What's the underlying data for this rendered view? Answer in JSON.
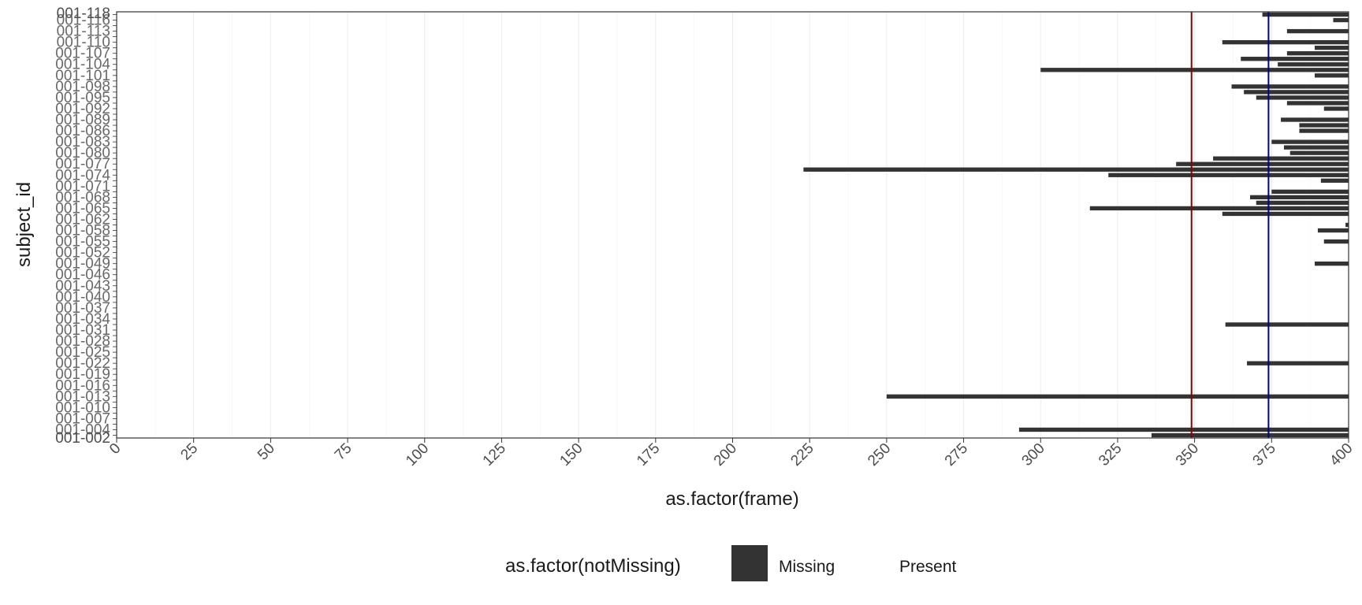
{
  "chart_data": {
    "type": "bar",
    "orientation": "horizontal",
    "xlabel": "as.factor(frame)",
    "ylabel": "subject_id",
    "xlim": [
      0,
      400
    ],
    "x_ticks": [
      "0",
      "25",
      "50",
      "75",
      "100",
      "125",
      "150",
      "175",
      "200",
      "225",
      "250",
      "275",
      "300",
      "325",
      "350",
      "375",
      "400"
    ],
    "y_tick_labels_top": "001-118",
    "y_tick_labels_bottom": "001-002",
    "grid": true,
    "legend": {
      "title": "as.factor(notMissing)",
      "position": "bottom",
      "entries": [
        {
          "label": "Missing",
          "color": "#333333"
        },
        {
          "label": "Present",
          "color": "#ffffff"
        }
      ]
    },
    "reference_lines": [
      {
        "x": 349,
        "color": "#8b0000"
      },
      {
        "x": 374,
        "color": "#00008b"
      }
    ],
    "missing_from_frame": [
      372,
      395,
      null,
      380,
      null,
      359,
      389,
      380,
      365,
      377,
      300,
      389,
      null,
      362,
      366,
      370,
      380,
      392,
      null,
      378,
      384,
      384,
      null,
      375,
      379,
      381,
      356,
      344,
      223,
      322,
      391,
      null,
      375,
      368,
      370,
      316,
      359,
      null,
      399,
      390,
      null,
      392,
      null,
      null,
      null,
      389,
      null,
      null,
      null,
      null,
      null,
      null,
      null,
      null,
      null,
      null,
      360,
      null,
      null,
      null,
      null,
      null,
      null,
      367,
      null,
      null,
      null,
      null,
      null,
      250,
      null,
      null,
      null,
      null,
      null,
      293,
      336
    ]
  }
}
